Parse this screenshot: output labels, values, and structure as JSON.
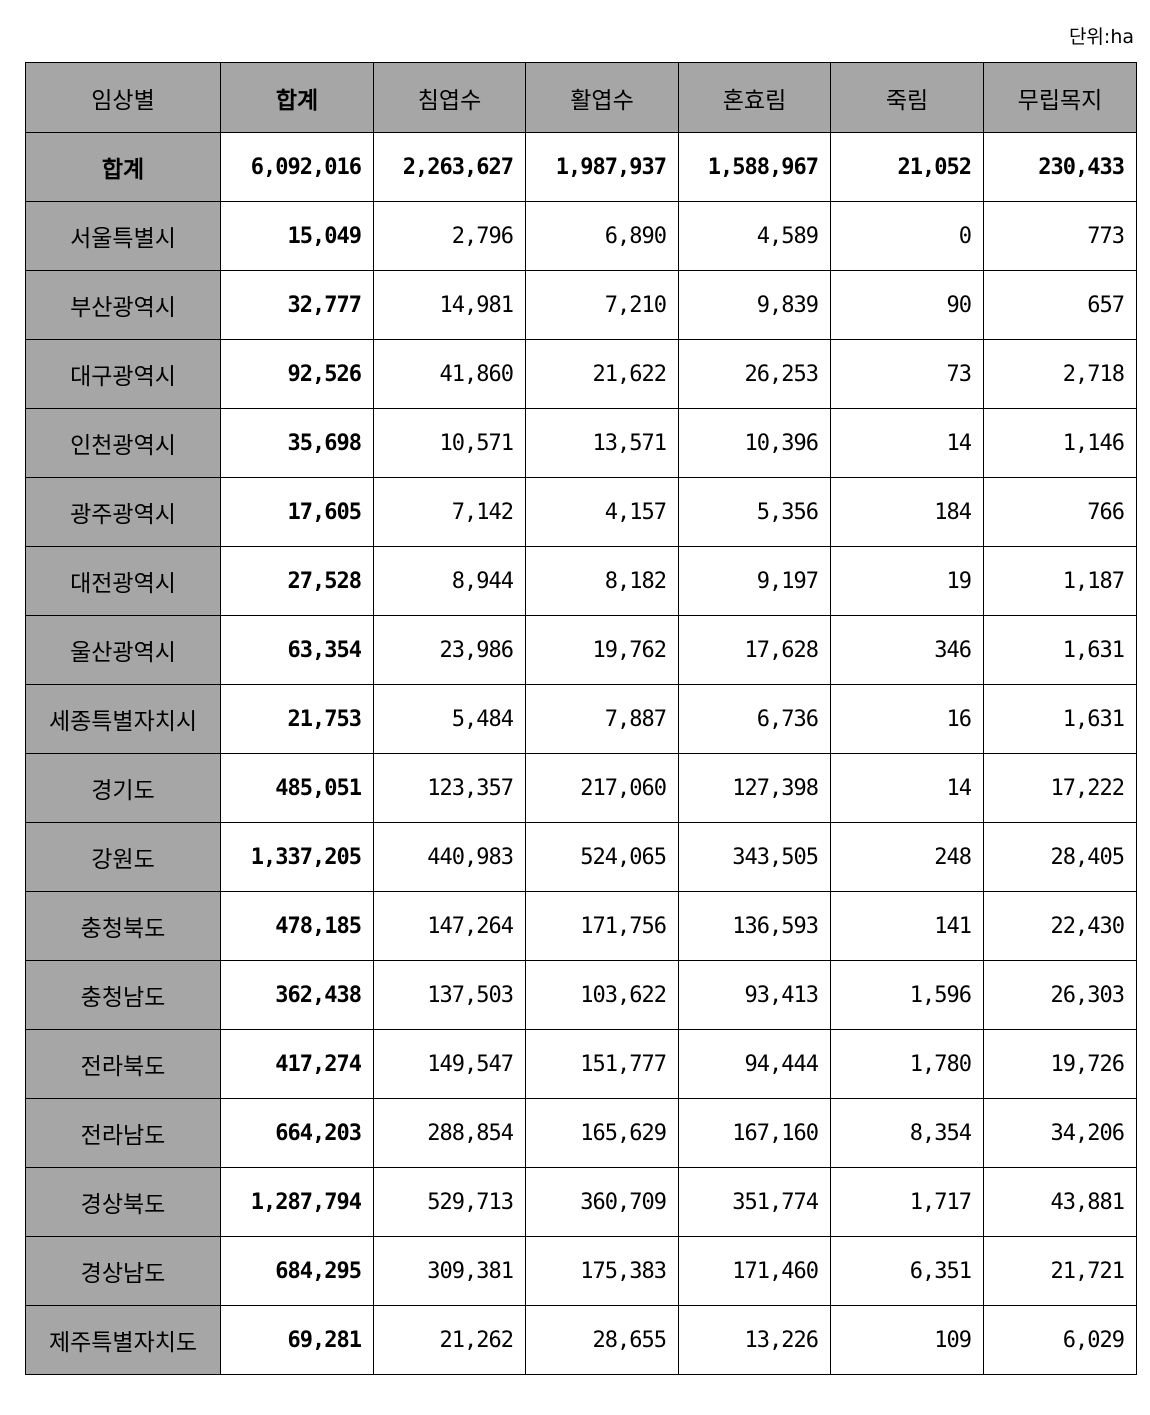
{
  "unit_label": "단위:ha",
  "table": {
    "headers": [
      "임상별",
      "합계",
      "침엽수",
      "활엽수",
      "혼효림",
      "죽림",
      "무립목지"
    ],
    "rows": [
      [
        "합계",
        "6,092,016",
        "2,263,627",
        "1,987,937",
        "1,588,967",
        "21,052",
        "230,433"
      ],
      [
        "서울특별시",
        "15,049",
        "2,796",
        "6,890",
        "4,589",
        "0",
        "773"
      ],
      [
        "부산광역시",
        "32,777",
        "14,981",
        "7,210",
        "9,839",
        "90",
        "657"
      ],
      [
        "대구광역시",
        "92,526",
        "41,860",
        "21,622",
        "26,253",
        "73",
        "2,718"
      ],
      [
        "인천광역시",
        "35,698",
        "10,571",
        "13,571",
        "10,396",
        "14",
        "1,146"
      ],
      [
        "광주광역시",
        "17,605",
        "7,142",
        "4,157",
        "5,356",
        "184",
        "766"
      ],
      [
        "대전광역시",
        "27,528",
        "8,944",
        "8,182",
        "9,197",
        "19",
        "1,187"
      ],
      [
        "울산광역시",
        "63,354",
        "23,986",
        "19,762",
        "17,628",
        "346",
        "1,631"
      ],
      [
        "세종특별자치시",
        "21,753",
        "5,484",
        "7,887",
        "6,736",
        "16",
        "1,631"
      ],
      [
        "경기도",
        "485,051",
        "123,357",
        "217,060",
        "127,398",
        "14",
        "17,222"
      ],
      [
        "강원도",
        "1,337,205",
        "440,983",
        "524,065",
        "343,505",
        "248",
        "28,405"
      ],
      [
        "충청북도",
        "478,185",
        "147,264",
        "171,756",
        "136,593",
        "141",
        "22,430"
      ],
      [
        "충청남도",
        "362,438",
        "137,503",
        "103,622",
        "93,413",
        "1,596",
        "26,303"
      ],
      [
        "전라북도",
        "417,274",
        "149,547",
        "151,777",
        "94,444",
        "1,780",
        "19,726"
      ],
      [
        "전라남도",
        "664,203",
        "288,854",
        "165,629",
        "167,160",
        "8,354",
        "34,206"
      ],
      [
        "경상북도",
        "1,287,794",
        "529,713",
        "360,709",
        "351,774",
        "1,717",
        "43,881"
      ],
      [
        "경상남도",
        "684,295",
        "309,381",
        "175,383",
        "171,460",
        "6,351",
        "21,721"
      ],
      [
        "제주특별자치도",
        "69,281",
        "21,262",
        "28,655",
        "13,226",
        "109",
        "6,029"
      ]
    ]
  },
  "colors": {
    "header_bg": "#a6a6a6",
    "border": "#000000"
  }
}
